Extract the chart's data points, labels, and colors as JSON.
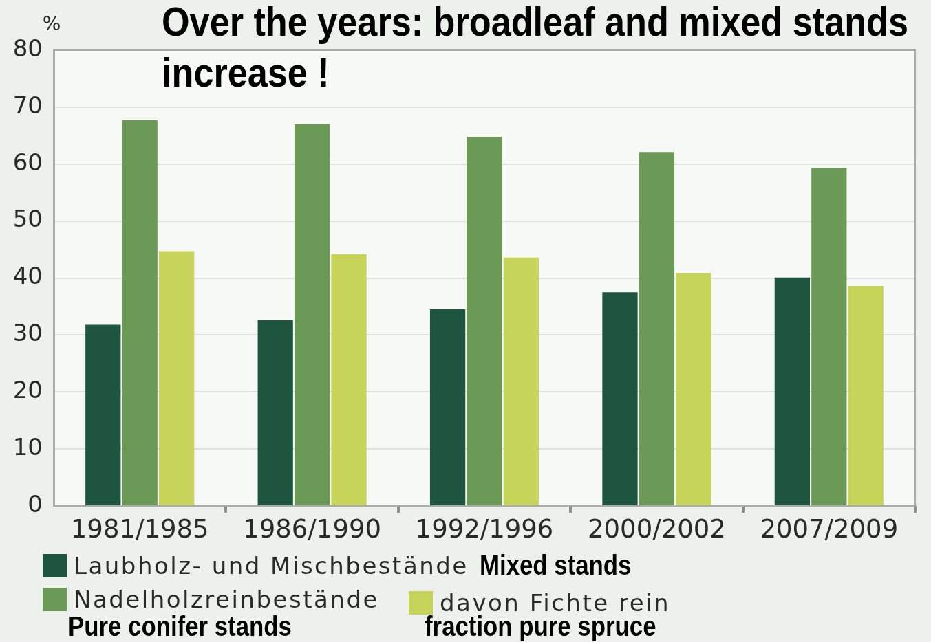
{
  "chart_data": {
    "type": "bar",
    "title": "Over the years: broadleaf and mixed stands increase !",
    "ylabel": "%",
    "categories": [
      "1981/1985",
      "1986/1990",
      "1992/1996",
      "2000/2002",
      "2007/2009"
    ],
    "series": [
      {
        "name": "Laubholz- und Mischbestände",
        "color": "#1e553e",
        "values": [
          31.8,
          32.6,
          34.5,
          37.5,
          40.1
        ]
      },
      {
        "name": "Nadelholzreinbestände",
        "color": "#6b9a56",
        "values": [
          67.7,
          67.0,
          64.8,
          62.1,
          59.3
        ]
      },
      {
        "name": "davon Fichte rein",
        "color": "#c6d55a",
        "values": [
          44.7,
          44.2,
          43.6,
          40.9,
          38.6
        ]
      }
    ],
    "ylim": [
      0,
      80
    ],
    "yticks": [
      0,
      10,
      20,
      30,
      40,
      50,
      60,
      70,
      80
    ],
    "grid": "y",
    "legend": "bottom",
    "annotations": [
      "Mixed stands",
      "Pure conifer stands",
      "fraction pure spruce"
    ]
  }
}
